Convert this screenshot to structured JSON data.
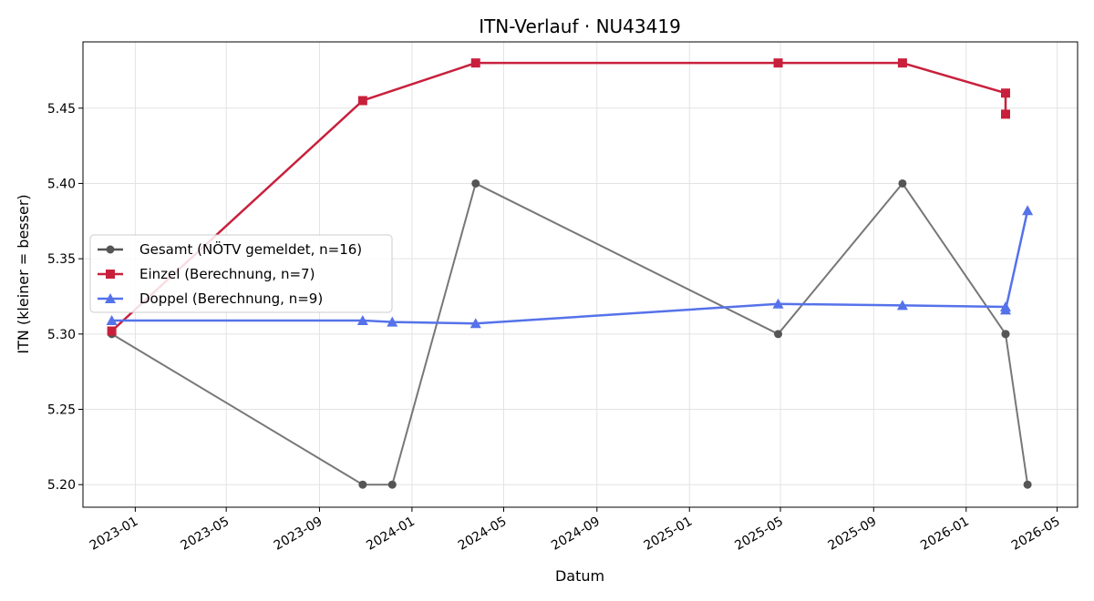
{
  "chart_data": {
    "type": "line",
    "title": "ITN-Verlauf · NU43419",
    "xlabel": "Datum",
    "ylabel": "ITN  (kleiner = besser)",
    "x_ticks": [
      "2023-01",
      "2023-05",
      "2023-09",
      "2024-01",
      "2024-05",
      "2024-09",
      "2025-01",
      "2025-05",
      "2025-09",
      "2026-01",
      "2026-05"
    ],
    "y_ticks": [
      "5.20",
      "5.25",
      "5.30",
      "5.35",
      "5.40",
      "5.45"
    ],
    "xlim": [
      "2022-10-24",
      "2026-05-28"
    ],
    "ylim": [
      5.185,
      5.494
    ],
    "grid": true,
    "legend_position": "center-left",
    "series": [
      {
        "name": "Gesamt (NÖTV gemeldet, n=16)",
        "color": "#555555",
        "marker": "circle",
        "x": [
          "2022-12-01",
          "2023-10-28",
          "2023-12-06",
          "2024-03-25",
          "2025-04-28",
          "2025-10-09",
          "2026-02-22",
          "2026-02-22",
          "2026-03-23"
        ],
        "y": [
          5.3,
          5.2,
          5.2,
          5.4,
          5.3,
          5.4,
          5.3,
          5.3,
          5.2
        ]
      },
      {
        "name": "Einzel (Berechnung, n=7)",
        "color": "#c8203c",
        "marker": "square",
        "x": [
          "2022-12-01",
          "2023-10-28",
          "2024-03-25",
          "2025-04-28",
          "2025-10-09",
          "2026-02-22",
          "2026-02-22"
        ],
        "y": [
          5.302,
          5.455,
          5.48,
          5.48,
          5.48,
          5.46,
          5.446
        ]
      },
      {
        "name": "Doppel (Berechnung, n=9)",
        "color": "#5572ea",
        "marker": "triangle",
        "x": [
          "2022-12-01",
          "2023-10-28",
          "2023-12-06",
          "2024-03-25",
          "2025-04-28",
          "2025-10-09",
          "2026-02-22",
          "2026-02-22",
          "2026-03-23"
        ],
        "y": [
          5.309,
          5.309,
          5.308,
          5.307,
          5.32,
          5.319,
          5.318,
          5.316,
          5.382
        ]
      }
    ]
  }
}
